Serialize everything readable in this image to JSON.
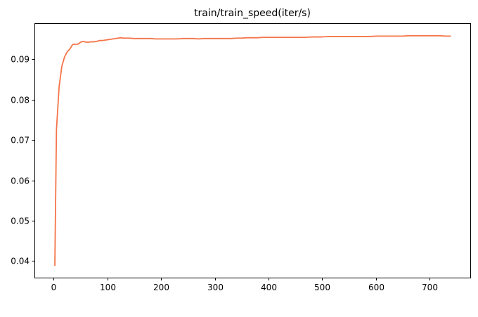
{
  "chart_data": {
    "type": "line",
    "title": "train/train_speed(iter/s)",
    "xlabel": "",
    "ylabel": "",
    "xlim": [
      -36,
      776
    ],
    "ylim": [
      0.0359,
      0.0989
    ],
    "xticks": [
      0,
      100,
      200,
      300,
      400,
      500,
      600,
      700
    ],
    "yticks": [
      0.04,
      0.05,
      0.06,
      0.07,
      0.08,
      0.09
    ],
    "ytick_labels": [
      "0.04",
      "0.05",
      "0.06",
      "0.07",
      "0.08",
      "0.09"
    ],
    "grid": false,
    "legend": "none",
    "series": [
      {
        "color": "#f4754a",
        "x": [
          2,
          5,
          10,
          15,
          20,
          25,
          30,
          35,
          40,
          45,
          50,
          55,
          60,
          65,
          70,
          75,
          80,
          85,
          90,
          95,
          100,
          110,
          120,
          125,
          130,
          140,
          150,
          160,
          170,
          180,
          190,
          200,
          210,
          220,
          230,
          240,
          250,
          260,
          270,
          280,
          290,
          300,
          310,
          320,
          330,
          340,
          350,
          360,
          370,
          380,
          390,
          400,
          410,
          420,
          430,
          440,
          450,
          460,
          470,
          480,
          490,
          500,
          510,
          520,
          530,
          540,
          550,
          560,
          570,
          580,
          590,
          600,
          610,
          620,
          630,
          640,
          650,
          660,
          670,
          680,
          690,
          700,
          710,
          720,
          730,
          740
        ],
        "y": [
          0.0388,
          0.0725,
          0.0832,
          0.0882,
          0.0905,
          0.0918,
          0.0925,
          0.0936,
          0.0937,
          0.0937,
          0.0942,
          0.0944,
          0.0942,
          0.0942,
          0.0943,
          0.0943,
          0.0944,
          0.0946,
          0.0946,
          0.0947,
          0.0948,
          0.095,
          0.0952,
          0.0953,
          0.0952,
          0.0952,
          0.0951,
          0.0951,
          0.0951,
          0.0951,
          0.095,
          0.095,
          0.095,
          0.095,
          0.095,
          0.0951,
          0.0951,
          0.0951,
          0.095,
          0.0951,
          0.0951,
          0.0951,
          0.0951,
          0.0951,
          0.0951,
          0.0952,
          0.0952,
          0.0953,
          0.0953,
          0.0953,
          0.0954,
          0.0954,
          0.0954,
          0.0954,
          0.0954,
          0.0954,
          0.0954,
          0.0954,
          0.0954,
          0.0955,
          0.0955,
          0.0955,
          0.0956,
          0.0956,
          0.0956,
          0.0956,
          0.0956,
          0.0956,
          0.0956,
          0.0956,
          0.0956,
          0.0957,
          0.0957,
          0.0957,
          0.0957,
          0.0957,
          0.0957,
          0.0958,
          0.0958,
          0.0958,
          0.0958,
          0.0958,
          0.0958,
          0.0958,
          0.0957,
          0.0957
        ]
      }
    ]
  }
}
